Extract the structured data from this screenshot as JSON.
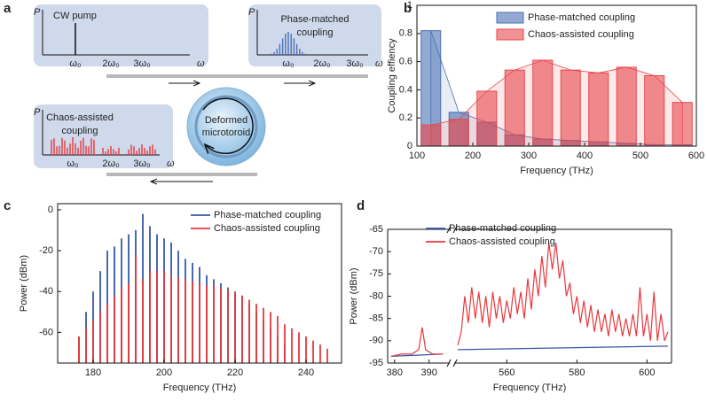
{
  "diagram": {
    "panel_label": "a",
    "boxes": [
      {
        "label": [
          "CW pump"
        ],
        "y_axis": "P",
        "x_axis": "ω",
        "ticks": [
          "ω₀",
          "2ω₀",
          "3ω₀"
        ]
      },
      {
        "label": [
          "Phase-matched",
          "coupling"
        ],
        "y_axis": "P",
        "x_axis": "ω",
        "ticks": [
          "ω₀",
          "2ω₀",
          "3ω₀"
        ]
      },
      {
        "label": [
          "Chaos-assisted",
          "coupling"
        ],
        "y_axis": "P",
        "x_axis": "ω",
        "ticks": [
          "ω₀",
          "2ω₀",
          "3ω₀"
        ]
      }
    ],
    "resonator": [
      "Deformed",
      "microtoroid"
    ]
  },
  "chart_data": [
    {
      "type": "bar",
      "panel_label": "b",
      "x": [
        125,
        175,
        225,
        275,
        325,
        375,
        425,
        475,
        525,
        575
      ],
      "series": [
        {
          "name": "Phase-matched coupling",
          "color": "#4a6fb3",
          "values": [
            0.82,
            0.24,
            0.17,
            0.08,
            0.05,
            0.04,
            0.03,
            0.02,
            0.01,
            0.01
          ]
        },
        {
          "name": "Chaos-assisted coupling",
          "color": "#e8474c",
          "values": [
            0.15,
            0.19,
            0.39,
            0.54,
            0.61,
            0.54,
            0.52,
            0.56,
            0.5,
            0.31
          ]
        }
      ],
      "xlim": [
        100,
        600
      ],
      "xticks": [
        100,
        200,
        300,
        400,
        500,
        600
      ],
      "ylim": [
        0,
        1
      ],
      "yticks": [
        0,
        0.2,
        0.4,
        0.6,
        0.8,
        1
      ],
      "xlabel": "Frequency (THz)",
      "ylabel": "Coupling effiency",
      "legend": "upper right"
    },
    {
      "type": "stem",
      "panel_label": "c",
      "series": [
        {
          "name": "Phase-matched coupling",
          "color": "#3557a6",
          "x": [
            176,
            178,
            180,
            182,
            184,
            186,
            188,
            190,
            192,
            194,
            196,
            198,
            200,
            202,
            204,
            206,
            208,
            210,
            212,
            214,
            216,
            218,
            220,
            222,
            224,
            226,
            228,
            230,
            232,
            234
          ],
          "values": [
            -62,
            -50,
            -40,
            -30,
            -20,
            -18,
            -14,
            -12,
            -10,
            -2,
            -8,
            -12,
            -14,
            -16,
            -20,
            -24,
            -26,
            -28,
            -32,
            -34,
            -36,
            -38,
            -40,
            -42,
            -46,
            -50,
            -54,
            -58,
            -62,
            -66
          ]
        },
        {
          "name": "Chaos-assisted coupling",
          "color": "#e8383d",
          "x": [
            176,
            178,
            180,
            182,
            184,
            186,
            188,
            190,
            192,
            194,
            196,
            198,
            200,
            202,
            204,
            206,
            208,
            210,
            212,
            214,
            216,
            218,
            220,
            222,
            224,
            226,
            228,
            230,
            232,
            234,
            236,
            238,
            240,
            242,
            244,
            246
          ],
          "values": [
            -62,
            -58,
            -54,
            -50,
            -46,
            -42,
            -38,
            -36,
            -22,
            -34,
            -30,
            -30,
            -30,
            -32,
            -33,
            -34,
            -35,
            -36,
            -37,
            -37,
            -38,
            -39,
            -40,
            -42,
            -44,
            -46,
            -48,
            -50,
            -52,
            -56,
            -58,
            -60,
            -62,
            -64,
            -66,
            -68
          ]
        }
      ],
      "xlim": [
        170,
        250
      ],
      "xticks": [
        180,
        200,
        220,
        240
      ],
      "ylim": [
        -75,
        3
      ],
      "yticks": [
        -60,
        -40,
        -20,
        0
      ],
      "xlabel": "Frequency (THz)",
      "ylabel": "Power (dBm)",
      "legend": "upper right"
    },
    {
      "type": "line",
      "panel_label": "d",
      "series": [
        {
          "name": "Phase-matched coupling",
          "color": "#3557a6",
          "x": [
            379,
            394,
            null,
            546,
            576,
            606
          ],
          "values": [
            -93.5,
            -93,
            null,
            -92,
            -91.6,
            -91.2
          ]
        },
        {
          "name": "Chaos-assisted coupling",
          "color": "#e8383d",
          "x": [
            379,
            382,
            385,
            387,
            388,
            389,
            391,
            394,
            null,
            546,
            547,
            548,
            549,
            550,
            551,
            552,
            553,
            554,
            555,
            556,
            557,
            558,
            559,
            560,
            561,
            562,
            563,
            564,
            565,
            566,
            567,
            568,
            569,
            570,
            571,
            572,
            573,
            574,
            575,
            576,
            577,
            578,
            579,
            580,
            581,
            582,
            583,
            584,
            585,
            586,
            587,
            588,
            589,
            590,
            591,
            592,
            593,
            594,
            595,
            596,
            597,
            598,
            599,
            600,
            601,
            602,
            603,
            604,
            605,
            606
          ],
          "values": [
            -93.5,
            -93,
            -93,
            -92,
            -87,
            -92,
            -93,
            -93,
            null,
            -91,
            -88,
            -80,
            -86,
            -78,
            -85,
            -79,
            -86,
            -80,
            -87,
            -79,
            -85,
            -80,
            -86,
            -81,
            -85,
            -78,
            -84,
            -79,
            -85,
            -76,
            -83,
            -74,
            -80,
            -71,
            -78,
            -68,
            -74,
            -68,
            -76,
            -72,
            -80,
            -77,
            -84,
            -80,
            -86,
            -81,
            -87,
            -82,
            -88,
            -83,
            -88,
            -84,
            -89,
            -83,
            -88,
            -84,
            -89,
            -85,
            -89,
            -84,
            -89,
            -78,
            -89,
            -84,
            -90,
            -79,
            -90,
            -84,
            -90,
            -88
          ]
        }
      ],
      "xlim": [
        378,
        607
      ],
      "x_break": [
        396,
        545
      ],
      "xticks": [
        380,
        390,
        560,
        580,
        600
      ],
      "ylim": [
        -95,
        -65
      ],
      "yticks": [
        -95,
        -90,
        -85,
        -80,
        -75,
        -70,
        -65
      ],
      "xlabel": "Frequency (THz)",
      "ylabel": "Power (dBm)",
      "legend": "upper left"
    }
  ]
}
